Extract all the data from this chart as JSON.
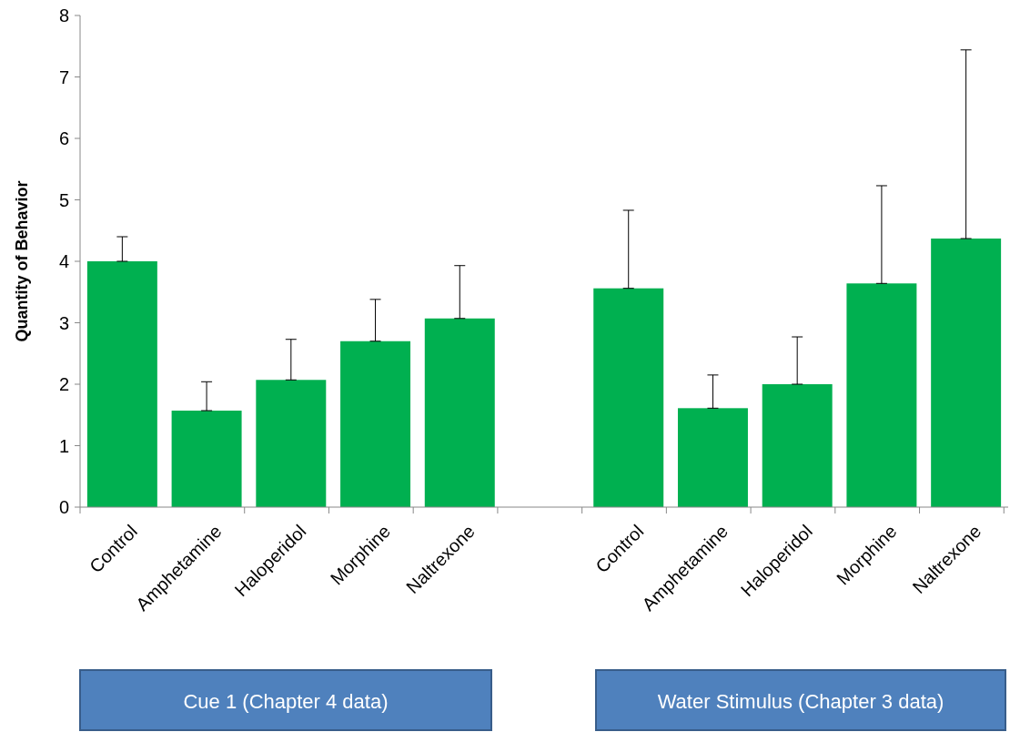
{
  "chart_data": {
    "type": "bar",
    "ylabel": "Quantity of Behavior",
    "categories": [
      "Control",
      "Amphetamine",
      "Haloperidol",
      "Morphine",
      "Naltrexone",
      null,
      "Control",
      "Amphetamine",
      "Haloperidol",
      "Morphine",
      "Naltrexone"
    ],
    "values": [
      4.0,
      1.57,
      2.07,
      2.7,
      3.07,
      null,
      3.56,
      1.61,
      2.0,
      3.64,
      4.37
    ],
    "errors": [
      [
        4.0,
        4.4
      ],
      [
        1.57,
        2.04
      ],
      [
        2.07,
        2.73
      ],
      [
        2.7,
        3.38
      ],
      [
        3.07,
        3.93
      ],
      null,
      [
        3.56,
        4.83
      ],
      [
        1.61,
        2.15
      ],
      [
        2.0,
        2.77
      ],
      [
        3.64,
        5.23
      ],
      [
        4.37,
        7.44
      ]
    ],
    "color": "#00b050",
    "ylim": [
      0,
      8
    ],
    "yticks": [
      0,
      1,
      2,
      3,
      4,
      5,
      6,
      7,
      8
    ],
    "grid": false,
    "annotations": [
      "Cue 1 (Chapter 4 data)",
      "Water Stimulus (Chapter 3 data)"
    ]
  }
}
